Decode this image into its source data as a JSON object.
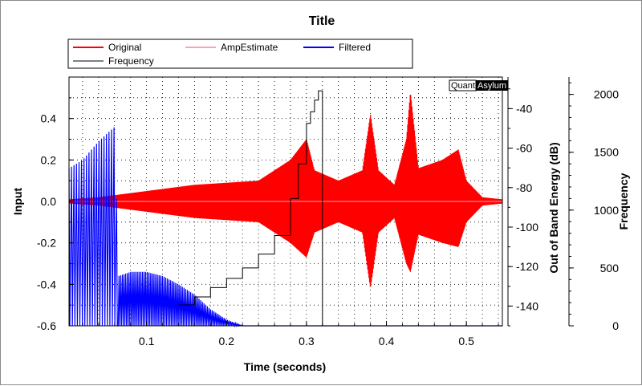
{
  "chart_data": {
    "type": "line",
    "title": "Title",
    "xlabel": "Time (seconds)",
    "ylabel_left": "Input",
    "ylabel_right1": "Out of Band Energy (dB)",
    "ylabel_right2": "Frequency",
    "xlim": [
      0.003,
      0.545
    ],
    "ylim_left": [
      -0.6,
      0.6
    ],
    "ylim_right1": [
      -150,
      -24
    ],
    "ylim_right2": [
      0,
      2150
    ],
    "x_ticks": [
      "0.1",
      "0.2",
      "0.3",
      "0.4",
      "0.5"
    ],
    "x_tick_values": [
      0.1,
      0.2,
      0.3,
      0.4,
      0.5
    ],
    "y_left_ticks": [
      "0.4",
      "0.2",
      "0.0",
      "-0.2",
      "-0.4",
      "-0.6"
    ],
    "y_left_tick_values": [
      0.4,
      0.2,
      0.0,
      -0.2,
      -0.4,
      -0.6
    ],
    "y_right1_ticks": [
      "-40",
      "-60",
      "-80",
      "-100",
      "-120",
      "-140"
    ],
    "y_right1_tick_values": [
      -40,
      -60,
      -80,
      -100,
      -120,
      -140
    ],
    "y_right2_ticks": [
      "2000",
      "1500",
      "1000",
      "500",
      "0"
    ],
    "y_right2_tick_values": [
      2000,
      1500,
      1000,
      500,
      0
    ],
    "grid": true,
    "legend_position": "top",
    "legend": [
      {
        "name": "Original",
        "color": "#ff0000"
      },
      {
        "name": "Frequency",
        "color": "#000000"
      },
      {
        "name": "AmpEstimate",
        "color": "#ffa0b4"
      },
      {
        "name": "Filtered",
        "color": "#0000ff"
      }
    ],
    "series": [
      {
        "name": "Original",
        "color": "#ff0000",
        "axis": "left",
        "envelope_x": [
          0.003,
          0.04,
          0.08,
          0.12,
          0.16,
          0.2,
          0.24,
          0.28,
          0.3,
          0.31,
          0.34,
          0.37,
          0.38,
          0.39,
          0.41,
          0.425,
          0.43,
          0.44,
          0.47,
          0.49,
          0.5,
          0.52,
          0.545
        ],
        "envelope_max": [
          0.01,
          0.02,
          0.04,
          0.06,
          0.08,
          0.09,
          0.1,
          0.2,
          0.3,
          0.15,
          0.1,
          0.15,
          0.42,
          0.15,
          0.08,
          0.3,
          0.53,
          0.16,
          0.2,
          0.25,
          0.1,
          0.02,
          0.01
        ],
        "envelope_min": [
          -0.01,
          -0.02,
          -0.04,
          -0.06,
          -0.08,
          -0.09,
          -0.1,
          -0.2,
          -0.27,
          -0.15,
          -0.1,
          -0.15,
          -0.42,
          -0.15,
          -0.08,
          -0.3,
          -0.34,
          -0.16,
          -0.2,
          -0.22,
          -0.1,
          -0.02,
          -0.01
        ]
      },
      {
        "name": "Frequency",
        "color": "#000000",
        "axis": "right2",
        "x": [
          0.14,
          0.16,
          0.18,
          0.2,
          0.22,
          0.24,
          0.26,
          0.28,
          0.29,
          0.3,
          0.305,
          0.31,
          0.315,
          0.318,
          0.32,
          0.32
        ],
        "values": [
          180,
          250,
          330,
          410,
          500,
          620,
          780,
          1100,
          1400,
          1750,
          1850,
          1950,
          2030,
          2030,
          2030,
          0
        ]
      },
      {
        "name": "AmpEstimate",
        "color": "#ffa0b4",
        "axis": "left",
        "x": [
          0.003,
          0.545
        ],
        "values": [
          0.0,
          0.0
        ]
      },
      {
        "name": "Filtered",
        "color": "#0000ff",
        "axis": "left",
        "envelope_x": [
          0.003,
          0.02,
          0.04,
          0.06,
          0.065,
          0.08,
          0.1,
          0.12,
          0.14,
          0.16,
          0.18,
          0.2,
          0.22,
          0.545
        ],
        "envelope_max": [
          0.16,
          0.2,
          0.29,
          0.36,
          -0.36,
          -0.34,
          -0.34,
          -0.36,
          -0.4,
          -0.45,
          -0.52,
          -0.57,
          -0.6,
          -0.6
        ],
        "envelope_min": [
          -0.6,
          -0.6,
          -0.6,
          -0.6,
          -0.6,
          -0.6,
          -0.6,
          -0.6,
          -0.6,
          -0.6,
          -0.6,
          -0.6,
          -0.6,
          -0.6
        ]
      }
    ],
    "watermark": [
      "Quant",
      "Asylum"
    ]
  }
}
